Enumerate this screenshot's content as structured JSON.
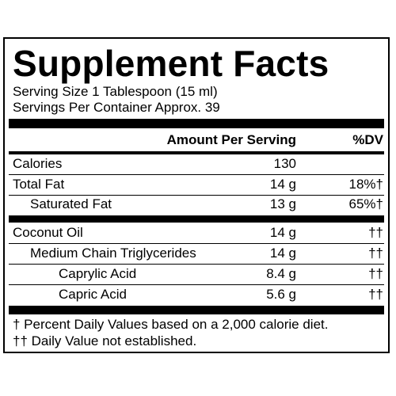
{
  "title": "Supplement Facts",
  "serving_size": "Serving Size 1 Tablespoon (15 ml)",
  "servings_per_container": "Servings Per Container Approx. 39",
  "header": {
    "amount": "Amount Per Serving",
    "dv": "%DV"
  },
  "rows": [
    {
      "name": "Calories",
      "amount": "130",
      "dv": ""
    },
    {
      "name": "Total Fat",
      "amount": "14 g",
      "dv": "18%†"
    },
    {
      "name": "Saturated Fat",
      "amount": "13 g",
      "dv": "65%†"
    },
    {
      "name": "Coconut Oil",
      "amount": "14 g",
      "dv": "††"
    },
    {
      "name": "Medium Chain Triglycerides",
      "amount": "14 g",
      "dv": "††"
    },
    {
      "name": "Caprylic Acid",
      "amount": "8.4 g",
      "dv": "††"
    },
    {
      "name": "Capric Acid",
      "amount": "5.6 g",
      "dv": "††"
    }
  ],
  "footnotes": [
    "† Percent Daily Values based on a 2,000 calorie diet.",
    "†† Daily Value not established."
  ]
}
